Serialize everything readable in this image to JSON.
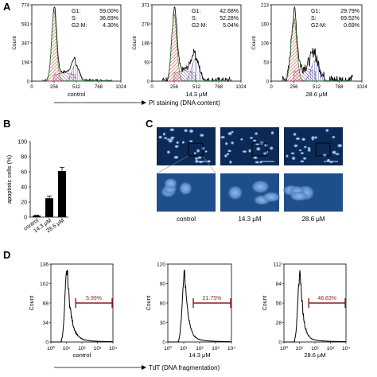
{
  "panels": {
    "A": {
      "label": "A",
      "xaxis_text": "PI staining (DNA content)",
      "y_label": "Count",
      "histograms": [
        {
          "condition": "control",
          "ymax": 774,
          "yticks": [
            "0",
            "194",
            "387",
            "581",
            "774"
          ],
          "xticks": [
            "0",
            "256",
            "512",
            "768",
            "1024"
          ],
          "stats": [
            [
              "G1:",
              "59.00%"
            ],
            [
              "S:",
              "36.69%"
            ],
            [
              "G2-M:",
              "4.30%"
            ]
          ]
        },
        {
          "condition": "14.3 μM",
          "ymax": 371,
          "yticks": [
            "0",
            "93",
            "186",
            "278",
            "371"
          ],
          "xticks": [
            "0",
            "256",
            "512",
            "768",
            "1024"
          ],
          "stats": [
            [
              "G1:",
              "42.68%"
            ],
            [
              "S:",
              "52.28%"
            ],
            [
              "G2-M:",
              "5.04%"
            ]
          ]
        },
        {
          "condition": "28.6 μM",
          "ymax": 213,
          "yticks": [
            "0",
            "53",
            "106",
            "160",
            "213"
          ],
          "xticks": [
            "0",
            "256",
            "512",
            "768",
            "1024"
          ],
          "stats": [
            [
              "G1:",
              "29.79%"
            ],
            [
              "S:",
              "69.52%"
            ],
            [
              "G2-M:",
              "0.69%"
            ]
          ]
        }
      ]
    },
    "B": {
      "label": "B",
      "chart_data": {
        "type": "bar",
        "categories": [
          "control",
          "14.3 μM",
          "28.6 μM"
        ],
        "values": [
          2,
          25,
          61
        ],
        "errors": [
          0.5,
          3,
          5
        ],
        "ylabel": "apoptotic cells (%)",
        "ylim": [
          0,
          100
        ],
        "yticks": [
          "0",
          "20",
          "40",
          "60",
          "80",
          "100"
        ]
      }
    },
    "C": {
      "label": "C",
      "conditions": [
        "control",
        "14.3 μM",
        "28.6 μM"
      ]
    },
    "D": {
      "label": "D",
      "xaxis_text": "TdT (DNA fragmentation)",
      "y_label": "Count",
      "histograms": [
        {
          "condition": "control",
          "ymax": 136,
          "yticks": [
            "0",
            "34",
            "68",
            "102",
            "136"
          ],
          "percent": "5.99%"
        },
        {
          "condition": "14.3 μM",
          "ymax": 120,
          "yticks": [
            "0",
            "30",
            "60",
            "90",
            "120"
          ],
          "percent": "21.75%"
        },
        {
          "condition": "28.6 μM",
          "ymax": 112,
          "yticks": [
            "0",
            "28",
            "56",
            "84",
            "112"
          ],
          "percent": "48.83%"
        }
      ],
      "xticks": [
        "10⁰",
        "10¹",
        "10²",
        "10³",
        "10⁴"
      ]
    }
  },
  "colors": {
    "marker_line": "#8b1a1a",
    "percent_text": "#8b2a2a",
    "g1_fill": "#c0392b",
    "s_fill": "#7a2a6b",
    "fluor_bg": "#0c2a55",
    "nucleus": "#9fc4ee"
  }
}
